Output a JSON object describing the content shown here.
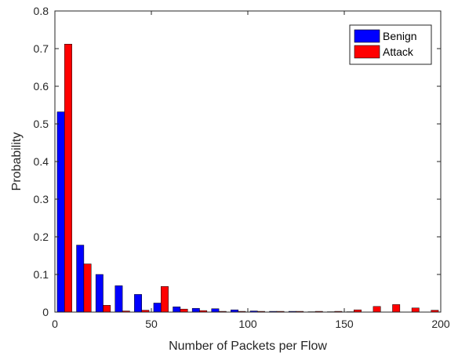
{
  "chart_data": {
    "type": "bar",
    "title": "",
    "xlabel": "Number of Packets per Flow",
    "ylabel": "Probability",
    "xlim": [
      0,
      200
    ],
    "ylim": [
      0,
      0.8
    ],
    "xticks": [
      0,
      50,
      100,
      150,
      200
    ],
    "yticks": [
      0,
      0.1,
      0.2,
      0.3,
      0.4,
      0.5,
      0.6,
      0.7,
      0.8
    ],
    "xtick_labels": [
      "0",
      "50",
      "100",
      "150",
      "200"
    ],
    "ytick_labels": [
      "0",
      "0.1",
      "0.2",
      "0.3",
      "0.4",
      "0.5",
      "0.6",
      "0.7",
      "0.8"
    ],
    "grid": false,
    "legend_position": "top-right",
    "bin_centers": [
      5,
      15,
      25,
      35,
      45,
      55,
      65,
      75,
      85,
      95,
      105,
      115,
      125,
      135,
      145,
      155,
      165,
      175,
      185,
      195
    ],
    "series": [
      {
        "name": "Benign",
        "color": "#0000ff",
        "values": [
          0.532,
          0.178,
          0.1,
          0.07,
          0.047,
          0.024,
          0.014,
          0.01,
          0.009,
          0.006,
          0.003,
          0.002,
          0.002,
          0.001,
          0.001,
          0.001,
          0.0,
          0.0,
          0.0,
          0.0
        ]
      },
      {
        "name": "Attack",
        "color": "#ff0000",
        "values": [
          0.712,
          0.128,
          0.018,
          0.003,
          0.005,
          0.068,
          0.008,
          0.004,
          0.002,
          0.002,
          0.002,
          0.002,
          0.002,
          0.002,
          0.002,
          0.006,
          0.015,
          0.02,
          0.011,
          0.005
        ]
      }
    ]
  }
}
